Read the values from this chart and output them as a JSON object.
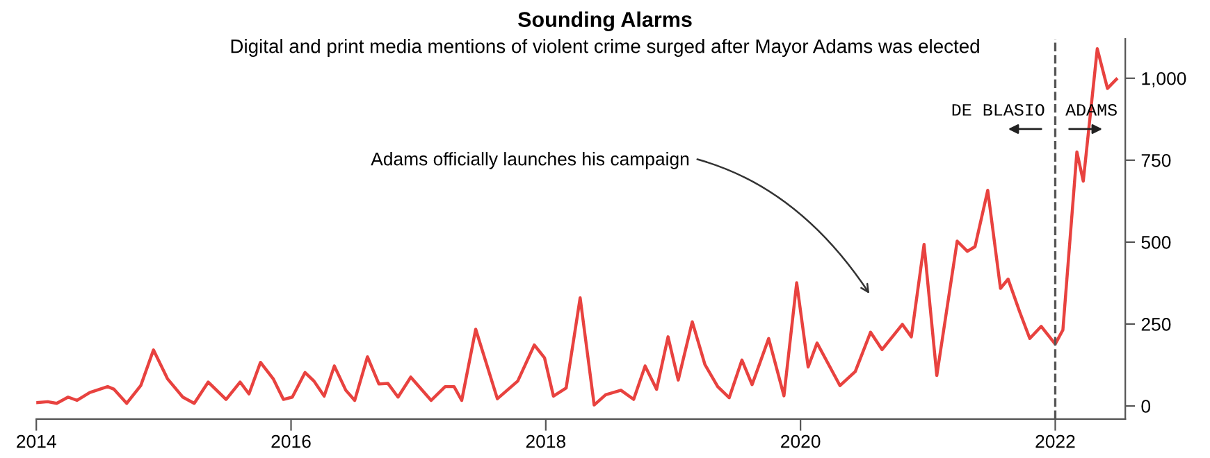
{
  "chart_data": {
    "type": "line",
    "title": "Sounding Alarms",
    "subtitle": "Digital and print media mentions of violent crime surged after Mayor Adams was elected",
    "x": [
      2014.0,
      2014.09,
      2014.16,
      2014.25,
      2014.32,
      2014.42,
      2014.56,
      2014.61,
      2014.71,
      2014.82,
      2014.92,
      2015.03,
      2015.15,
      2015.24,
      2015.35,
      2015.49,
      2015.6,
      2015.67,
      2015.76,
      2015.86,
      2015.94,
      2016.01,
      2016.11,
      2016.18,
      2016.26,
      2016.34,
      2016.43,
      2016.5,
      2016.6,
      2016.69,
      2016.76,
      2016.84,
      2016.94,
      2017.1,
      2017.21,
      2017.28,
      2017.34,
      2017.45,
      2017.62,
      2017.78,
      2017.91,
      2017.99,
      2018.06,
      2018.16,
      2018.27,
      2018.38,
      2018.47,
      2018.59,
      2018.69,
      2018.78,
      2018.87,
      2018.96,
      2019.04,
      2019.15,
      2019.25,
      2019.35,
      2019.44,
      2019.54,
      2019.62,
      2019.75,
      2019.87,
      2019.97,
      2020.06,
      2020.13,
      2020.31,
      2020.43,
      2020.55,
      2020.64,
      2020.8,
      2020.87,
      2020.97,
      2021.07,
      2021.23,
      2021.31,
      2021.37,
      2021.47,
      2021.57,
      2021.63,
      2021.72,
      2021.8,
      2021.89,
      2022.0,
      2022.06,
      2022.17,
      2022.22,
      2022.33,
      2022.41,
      2022.48
    ],
    "series": [
      {
        "color": "#e8423f",
        "values": [
          10,
          13,
          8,
          27,
          17,
          41,
          59,
          51,
          8,
          62,
          171,
          83,
          27,
          8,
          73,
          20,
          73,
          37,
          133,
          83,
          20,
          27,
          102,
          76,
          30,
          122,
          48,
          17,
          150,
          67,
          69,
          27,
          88,
          17,
          59,
          59,
          17,
          234,
          22,
          76,
          186,
          147,
          30,
          55,
          330,
          3,
          34,
          48,
          20,
          122,
          51,
          211,
          79,
          257,
          126,
          59,
          25,
          140,
          65,
          206,
          31,
          376,
          119,
          192,
          62,
          105,
          225,
          172,
          249,
          211,
          493,
          93,
          503,
          472,
          486,
          658,
          359,
          387,
          288,
          206,
          243,
          189,
          232,
          775,
          686,
          1090,
          969,
          997
        ]
      }
    ],
    "xlim": [
      2014,
      2022.55
    ],
    "xticks": [
      2014,
      2016,
      2018,
      2020,
      2022
    ],
    "ylim": [
      -40,
      1120
    ],
    "yticks": [
      0,
      250,
      500,
      750,
      {
        "value": 1000,
        "label": "1,000"
      }
    ],
    "ref_lines": [
      {
        "axis": "x",
        "value": 2022,
        "color": "#555555",
        "line_style": "dashed"
      }
    ],
    "annotations": [
      "Adams officially launches his campaign",
      "DE BLASIO",
      "ADAMS"
    ],
    "grid": false,
    "legend": false,
    "marker": "none",
    "line_style": "solid"
  }
}
